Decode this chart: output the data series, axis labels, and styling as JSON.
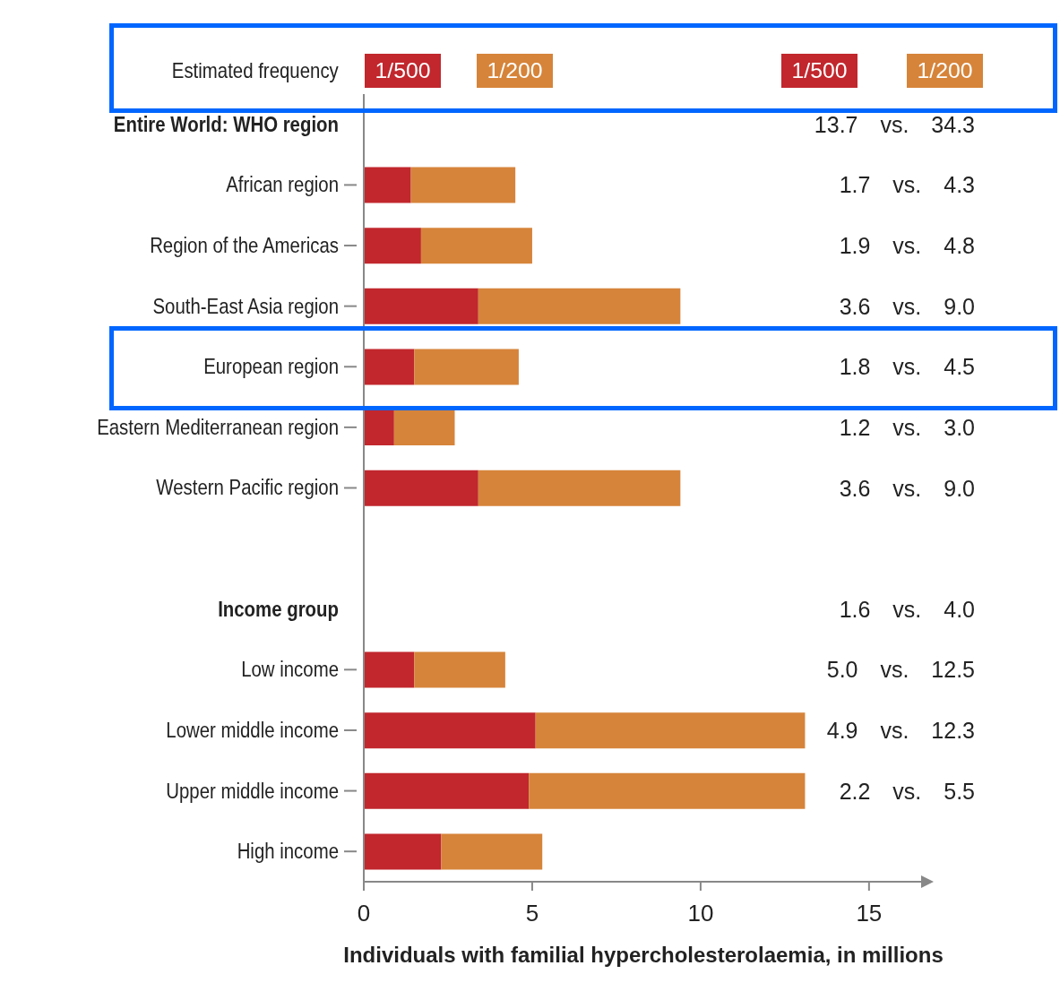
{
  "chart_data": {
    "type": "bar",
    "orientation": "horizontal",
    "stacked": true,
    "categories": [
      "Entire World: WHO region",
      "African region",
      "Region of the Americas",
      "South-East Asia region",
      "European region",
      "Eastern Mediterranean region",
      "Western Pacific region",
      null,
      "Income group",
      "Low income",
      "Lower middle income",
      "Upper middle income",
      "High income"
    ],
    "series": [
      {
        "name": "1/500",
        "color": "#c1272d",
        "values": [
          null,
          1.4,
          1.7,
          3.4,
          1.5,
          0.9,
          3.4,
          null,
          null,
          1.5,
          5.1,
          4.9,
          2.3
        ]
      },
      {
        "name": "1/200",
        "color": "#d6843a",
        "values": [
          null,
          3.1,
          3.3,
          6.0,
          3.1,
          1.8,
          6.0,
          null,
          null,
          2.7,
          8.0,
          8.2,
          3.0
        ]
      }
    ],
    "legend": "top",
    "legend_title": "Estimated frequency",
    "xlabel": "Individuals with familial hypercholesterolaemia, in millions",
    "xlim": [
      0,
      16.6
    ],
    "xticks": [
      0,
      5,
      10,
      15
    ],
    "grid": false,
    "annotations": [
      "13.7 vs. 34.3",
      "1.7 vs. 4.3",
      "1.9 vs. 4.8",
      "3.6 vs. 9.0",
      "1.8 vs. 4.5",
      "1.2 vs. 3.0",
      "3.6 vs. 9.0",
      "1.6 vs. 4.0",
      "5.0 vs. 12.5",
      "4.9 vs. 12.3",
      "2.2 vs. 5.5"
    ]
  }
}
